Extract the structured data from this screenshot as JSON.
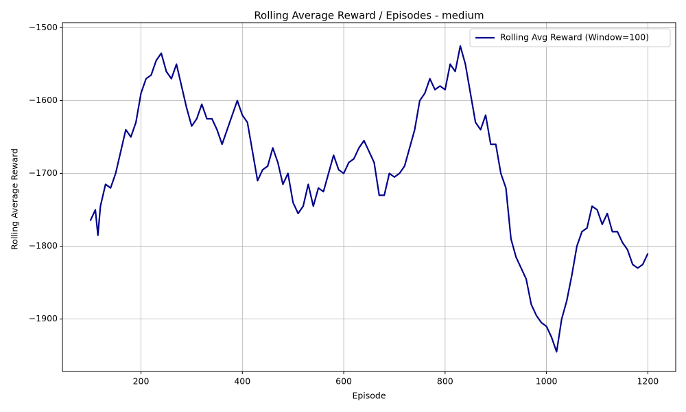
{
  "chart_data": {
    "type": "line",
    "title": "Rolling Average Reward / Episodes - medium",
    "x_label": "Episode",
    "y_label": "Rolling Average Reward",
    "x": [
      100,
      110,
      115,
      120,
      130,
      140,
      150,
      160,
      170,
      180,
      190,
      200,
      210,
      220,
      230,
      240,
      250,
      260,
      270,
      280,
      290,
      300,
      310,
      320,
      330,
      340,
      350,
      360,
      370,
      380,
      390,
      400,
      410,
      420,
      430,
      440,
      450,
      460,
      470,
      480,
      490,
      500,
      510,
      520,
      530,
      540,
      550,
      560,
      570,
      580,
      590,
      600,
      610,
      620,
      630,
      640,
      650,
      660,
      670,
      680,
      690,
      700,
      710,
      720,
      730,
      740,
      750,
      760,
      770,
      780,
      790,
      800,
      810,
      820,
      830,
      840,
      850,
      860,
      870,
      880,
      890,
      900,
      910,
      920,
      930,
      940,
      950,
      960,
      970,
      980,
      990,
      1000,
      1010,
      1020,
      1030,
      1040,
      1050,
      1060,
      1070,
      1080,
      1090,
      1100,
      1110,
      1120,
      1130,
      1140,
      1150,
      1160,
      1170,
      1180,
      1190,
      1200
    ],
    "series": [
      {
        "name": "Rolling Avg Reward (Window=100)",
        "color": "#00008b",
        "values": [
          -1765,
          -1750,
          -1785,
          -1745,
          -1715,
          -1720,
          -1700,
          -1670,
          -1640,
          -1650,
          -1630,
          -1590,
          -1570,
          -1565,
          -1545,
          -1535,
          -1560,
          -1570,
          -1550,
          -1580,
          -1610,
          -1635,
          -1625,
          -1605,
          -1625,
          -1625,
          -1640,
          -1660,
          -1640,
          -1620,
          -1600,
          -1620,
          -1630,
          -1670,
          -1710,
          -1695,
          -1690,
          -1665,
          -1685,
          -1715,
          -1700,
          -1740,
          -1755,
          -1745,
          -1715,
          -1745,
          -1720,
          -1725,
          -1700,
          -1675,
          -1695,
          -1700,
          -1685,
          -1680,
          -1665,
          -1655,
          -1670,
          -1685,
          -1730,
          -1730,
          -1700,
          -1705,
          -1700,
          -1690,
          -1665,
          -1640,
          -1600,
          -1590,
          -1570,
          -1585,
          -1580,
          -1585,
          -1550,
          -1560,
          -1525,
          -1550,
          -1590,
          -1630,
          -1640,
          -1620,
          -1660,
          -1660,
          -1700,
          -1720,
          -1790,
          -1815,
          -1830,
          -1845,
          -1880,
          -1895,
          -1905,
          -1910,
          -1925,
          -1945,
          -1900,
          -1875,
          -1840,
          -1800,
          -1780,
          -1775,
          -1745,
          -1750,
          -1770,
          -1755,
          -1780,
          -1780,
          -1795,
          -1805,
          -1825,
          -1830,
          -1825,
          -1810
        ]
      }
    ],
    "xlim": [
      45,
      1255
    ],
    "ylim": [
      -1972,
      -1493
    ],
    "xticks": [
      200,
      400,
      600,
      800,
      1000,
      1200
    ],
    "yticks": [
      {
        "value": -1900,
        "label": "−1900"
      },
      {
        "value": -1800,
        "label": "−1800"
      },
      {
        "value": -1700,
        "label": "−1700"
      },
      {
        "value": -1600,
        "label": "−1600"
      },
      {
        "value": -1500,
        "label": "−1500"
      }
    ],
    "grid": true,
    "legend": "upper-right"
  }
}
